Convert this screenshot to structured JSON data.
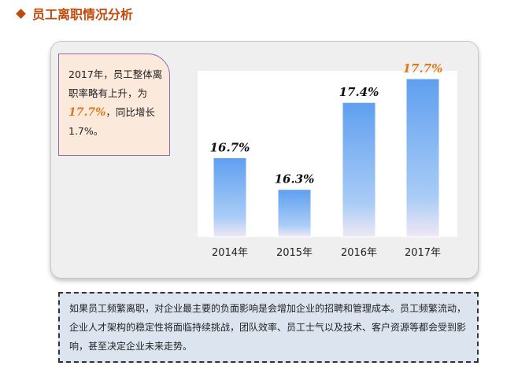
{
  "header": {
    "title": "员工离职情况分析"
  },
  "callout": {
    "line1": "2017年，员工整体离职率略有上升，为",
    "highlight": "17.7%",
    "line2": "，同比增长1.7%。"
  },
  "chart_data": {
    "type": "bar",
    "categories": [
      "2014年",
      "2015年",
      "2016年",
      "2017年"
    ],
    "values": [
      16.7,
      16.3,
      17.4,
      17.7
    ],
    "data_labels": [
      "16.7%",
      "16.3%",
      "17.4%",
      "17.7%"
    ],
    "ylim": [
      15.7,
      17.8
    ],
    "grid": false,
    "bar_color": "#6aa8f0",
    "highlight_label_color": "#e0781a"
  },
  "note": {
    "text": "如果员工频繁离职，对企业最主要的负面影响是会增加企业的招聘和管理成本。员工频繁流动，企业人才架构的稳定性将面临持续挑战，团队效率、员工士气以及技术、客户资源等都会受到影响，甚至决定企业未来走势。"
  }
}
